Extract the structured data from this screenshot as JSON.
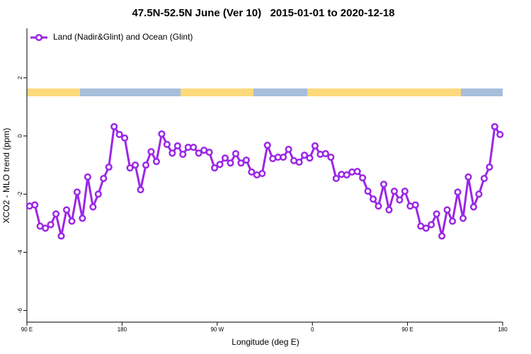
{
  "chart_data": {
    "type": "line",
    "title": "47.5N-52.5N June (Ver 10)   2015-01-01 to 2020-12-18",
    "x_label": "Longitude (deg E)",
    "y_label": "XCO2 - MLO trend (ppm)",
    "x": [
      92.5,
      97.5,
      102.5,
      107.5,
      112.5,
      117.5,
      122.5,
      127.5,
      132.5,
      137.5,
      142.5,
      147.5,
      152.5,
      157.5,
      162.5,
      167.5,
      172.5,
      177.5,
      182.5,
      187.5,
      192.5,
      197.5,
      202.5,
      207.5,
      212.5,
      217.5,
      222.5,
      227.5,
      232.5,
      237.5,
      242.5,
      247.5,
      252.5,
      257.5,
      262.5,
      267.5,
      272.5,
      277.5,
      282.5,
      287.5,
      292.5,
      297.5,
      302.5,
      307.5,
      312.5,
      317.5,
      322.5,
      327.5,
      332.5,
      337.5,
      342.5,
      347.5,
      352.5,
      357.5,
      362.5,
      367.5,
      372.5,
      377.5,
      382.5,
      387.5,
      392.5,
      397.5,
      402.5,
      407.5,
      412.5,
      417.5,
      422.5,
      427.5,
      432.5,
      437.5,
      442.5,
      447.5,
      452.5,
      457.5,
      462.5,
      467.5,
      472.5,
      477.5,
      482.5,
      487.5,
      492.5,
      497.5,
      502.5,
      507.5,
      512.5,
      517.5,
      522.5,
      527.5,
      532.5,
      537.5
    ],
    "series": [
      {
        "name": "Land (Nadir&Glint) and Ocean (Glint)",
        "color": "#9b27e6",
        "values": [
          -2.41,
          -2.37,
          -3.1,
          -3.17,
          -3.05,
          -2.68,
          -3.44,
          -2.54,
          -2.93,
          -1.93,
          -2.83,
          -1.41,
          -2.44,
          -2.0,
          -1.46,
          -1.07,
          0.32,
          0.05,
          -0.07,
          -1.1,
          -1.0,
          -1.85,
          -1.0,
          -0.54,
          -0.88,
          0.07,
          -0.29,
          -0.59,
          -0.34,
          -0.63,
          -0.39,
          -0.39,
          -0.59,
          -0.49,
          -0.56,
          -1.1,
          -0.98,
          -0.76,
          -0.93,
          -0.61,
          -0.93,
          -0.83,
          -1.24,
          -1.34,
          -1.29,
          -0.32,
          -0.78,
          -0.73,
          -0.73,
          -0.46,
          -0.85,
          -0.9,
          -0.66,
          -0.76,
          -0.34,
          -0.63,
          -0.61,
          -0.73,
          -1.46,
          -1.32,
          -1.34,
          -1.24,
          -1.22,
          -1.44,
          -1.9,
          -2.17,
          -2.41,
          -1.66,
          -2.54,
          -1.9,
          -2.2,
          -1.9,
          -2.41,
          -2.37,
          -3.1,
          -3.17,
          -3.05,
          -2.68,
          -3.44,
          -2.54,
          -2.93,
          -1.93,
          -2.83,
          -1.41,
          -2.44,
          -2.0,
          -1.46,
          -1.07,
          0.32,
          0.05
        ]
      }
    ],
    "xlim": [
      90,
      540
    ],
    "xticks": [
      {
        "value": 90,
        "label": "90 E"
      },
      {
        "value": 180,
        "label": "180"
      },
      {
        "value": 270,
        "label": "90 W"
      },
      {
        "value": 360,
        "label": "0"
      },
      {
        "value": 450,
        "label": "90 E"
      },
      {
        "value": 540,
        "label": "180"
      }
    ],
    "ylim": [
      -6.4,
      3.7
    ],
    "yticks": [
      -6,
      -4,
      -2,
      0,
      2
    ],
    "legend": "top-left"
  }
}
